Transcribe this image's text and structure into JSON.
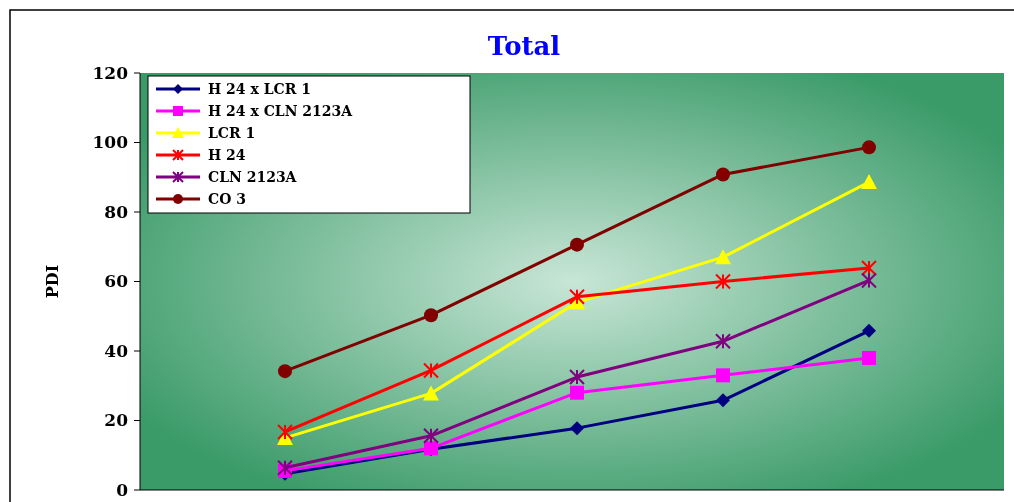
{
  "chart_data": {
    "type": "line",
    "title": "Total",
    "ylabel": "PDI",
    "categories": [
      null,
      null,
      null,
      null,
      null
    ],
    "ylim": [
      0,
      120
    ],
    "yticks": [
      0,
      20,
      40,
      60,
      80,
      100,
      120
    ],
    "legend": "top left",
    "grid": false,
    "series": [
      {
        "name": "H 24 x LCR 1",
        "color": "#000080",
        "marker": "diamond",
        "values": [
          4.7,
          11.7,
          17.8,
          25.8,
          45.8
        ]
      },
      {
        "name": "H 24 x CLN 2123A",
        "color": "#ff00ff",
        "marker": "square",
        "values": [
          5.5,
          12,
          28,
          33,
          38
        ]
      },
      {
        "name": "LCR 1",
        "color": "#ffff00",
        "marker": "triangle",
        "values": [
          15,
          27.8,
          54,
          67,
          88.6
        ]
      },
      {
        "name": "H 24",
        "color": "#ff0000",
        "marker": "cross",
        "values": [
          16.7,
          34.4,
          55.6,
          60,
          63.9
        ]
      },
      {
        "name": "CLN 2123A",
        "color": "#800080",
        "marker": "cross",
        "values": [
          6.4,
          15.6,
          32.5,
          42.8,
          60.3
        ]
      },
      {
        "name": "CO 3",
        "color": "#800000",
        "marker": "circle",
        "values": [
          34.2,
          50.3,
          70.6,
          90.8,
          98.6
        ]
      }
    ]
  }
}
